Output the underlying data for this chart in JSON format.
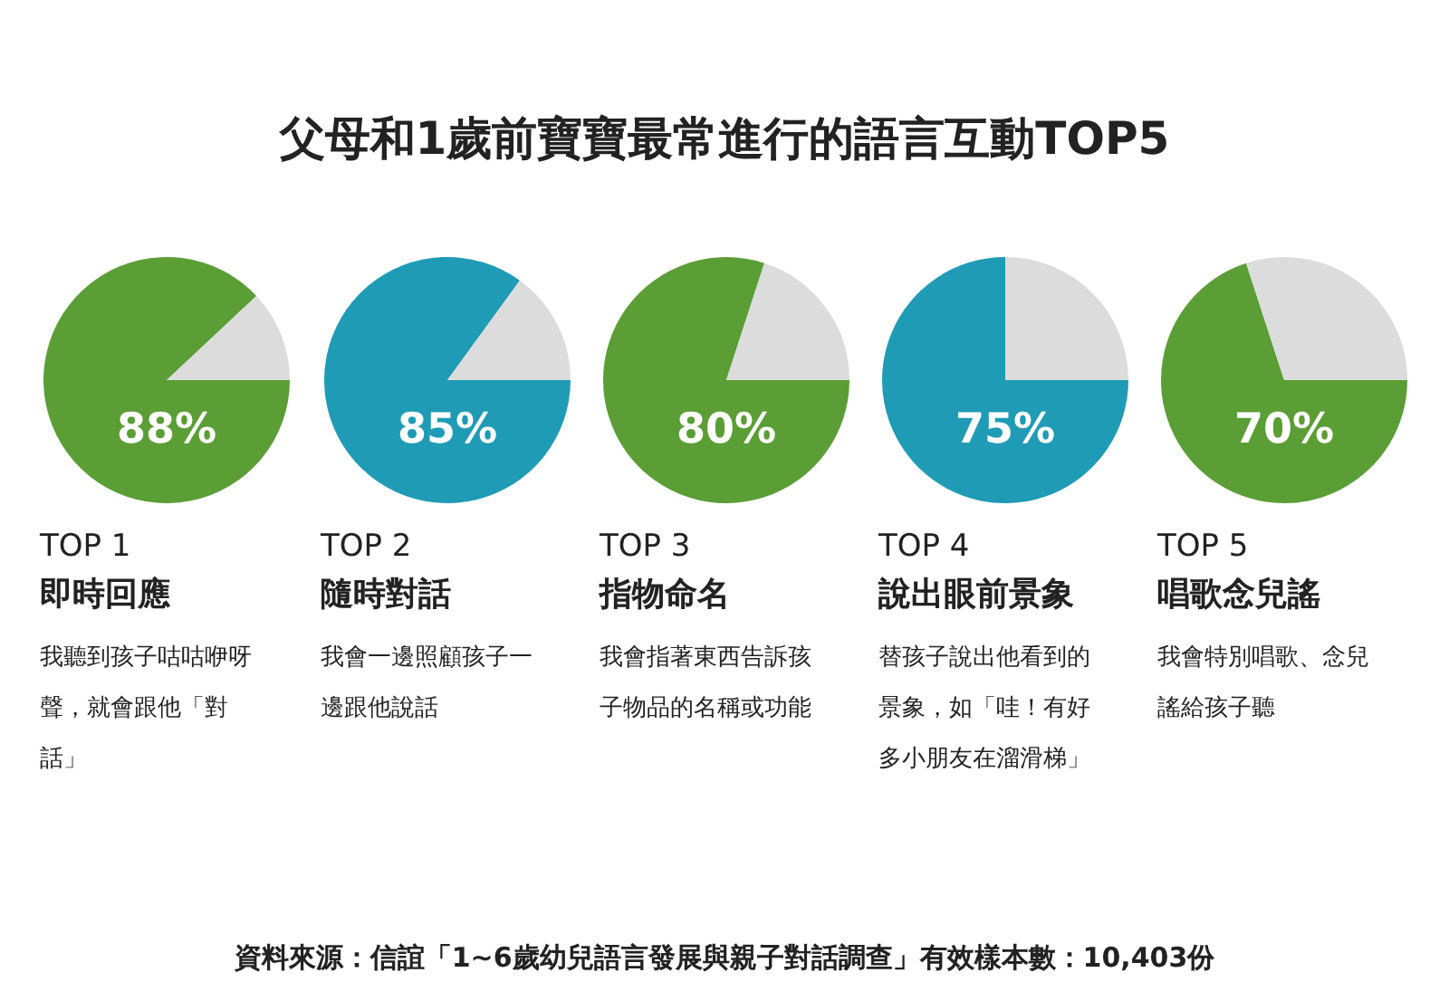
{
  "chart_data": [
    {
      "type": "other",
      "title": "父母和1歲前寶寶最常進行的語言互動TOP5",
      "annotations": [
        "資料來源：信誼「1~6歲幼兒語言發展與親子對話調查」有效樣本數：10,403份"
      ]
    },
    {
      "type": "pie",
      "title": "TOP 1",
      "subtitle": "即時回應",
      "annotations": [
        "我聽到孩子咕咕咿呀聲，就會跟他「對話」"
      ],
      "categories": [
        null,
        null
      ],
      "values": [
        88,
        12
      ],
      "colors": [
        "#5a9e35",
        "#dcdcdc"
      ],
      "value_labels": [
        "88%",
        null
      ]
    },
    {
      "type": "pie",
      "title": "TOP 2",
      "subtitle": "隨時對話",
      "annotations": [
        "我會一邊照顧孩子一邊跟他說話"
      ],
      "categories": [
        null,
        null
      ],
      "values": [
        85,
        15
      ],
      "colors": [
        "#1f9bb5",
        "#dcdcdc"
      ],
      "value_labels": [
        "85%",
        null
      ]
    },
    {
      "type": "pie",
      "title": "TOP 3",
      "subtitle": "指物命名",
      "annotations": [
        "我會指著東西告訴孩子物品的名稱或功能"
      ],
      "categories": [
        null,
        null
      ],
      "values": [
        80,
        20
      ],
      "colors": [
        "#5a9e35",
        "#dcdcdc"
      ],
      "value_labels": [
        "80%",
        null
      ]
    },
    {
      "type": "pie",
      "title": "TOP 4",
      "subtitle": "說出眼前景象",
      "annotations": [
        "替孩子說出他看到的景象，如「哇！有好多小朋友在溜滑梯」"
      ],
      "categories": [
        null,
        null
      ],
      "values": [
        75,
        25
      ],
      "colors": [
        "#1f9bb5",
        "#dcdcdc"
      ],
      "value_labels": [
        "75%",
        null
      ]
    },
    {
      "type": "pie",
      "title": "TOP 5",
      "subtitle": "唱歌念兒謠",
      "annotations": [
        "我會特別唱歌、念兒謠給孩子聽"
      ],
      "categories": [
        null,
        null
      ],
      "values": [
        70,
        30
      ],
      "colors": [
        "#5a9e35",
        "#dcdcdc"
      ],
      "value_labels": [
        "70%",
        null
      ]
    }
  ]
}
